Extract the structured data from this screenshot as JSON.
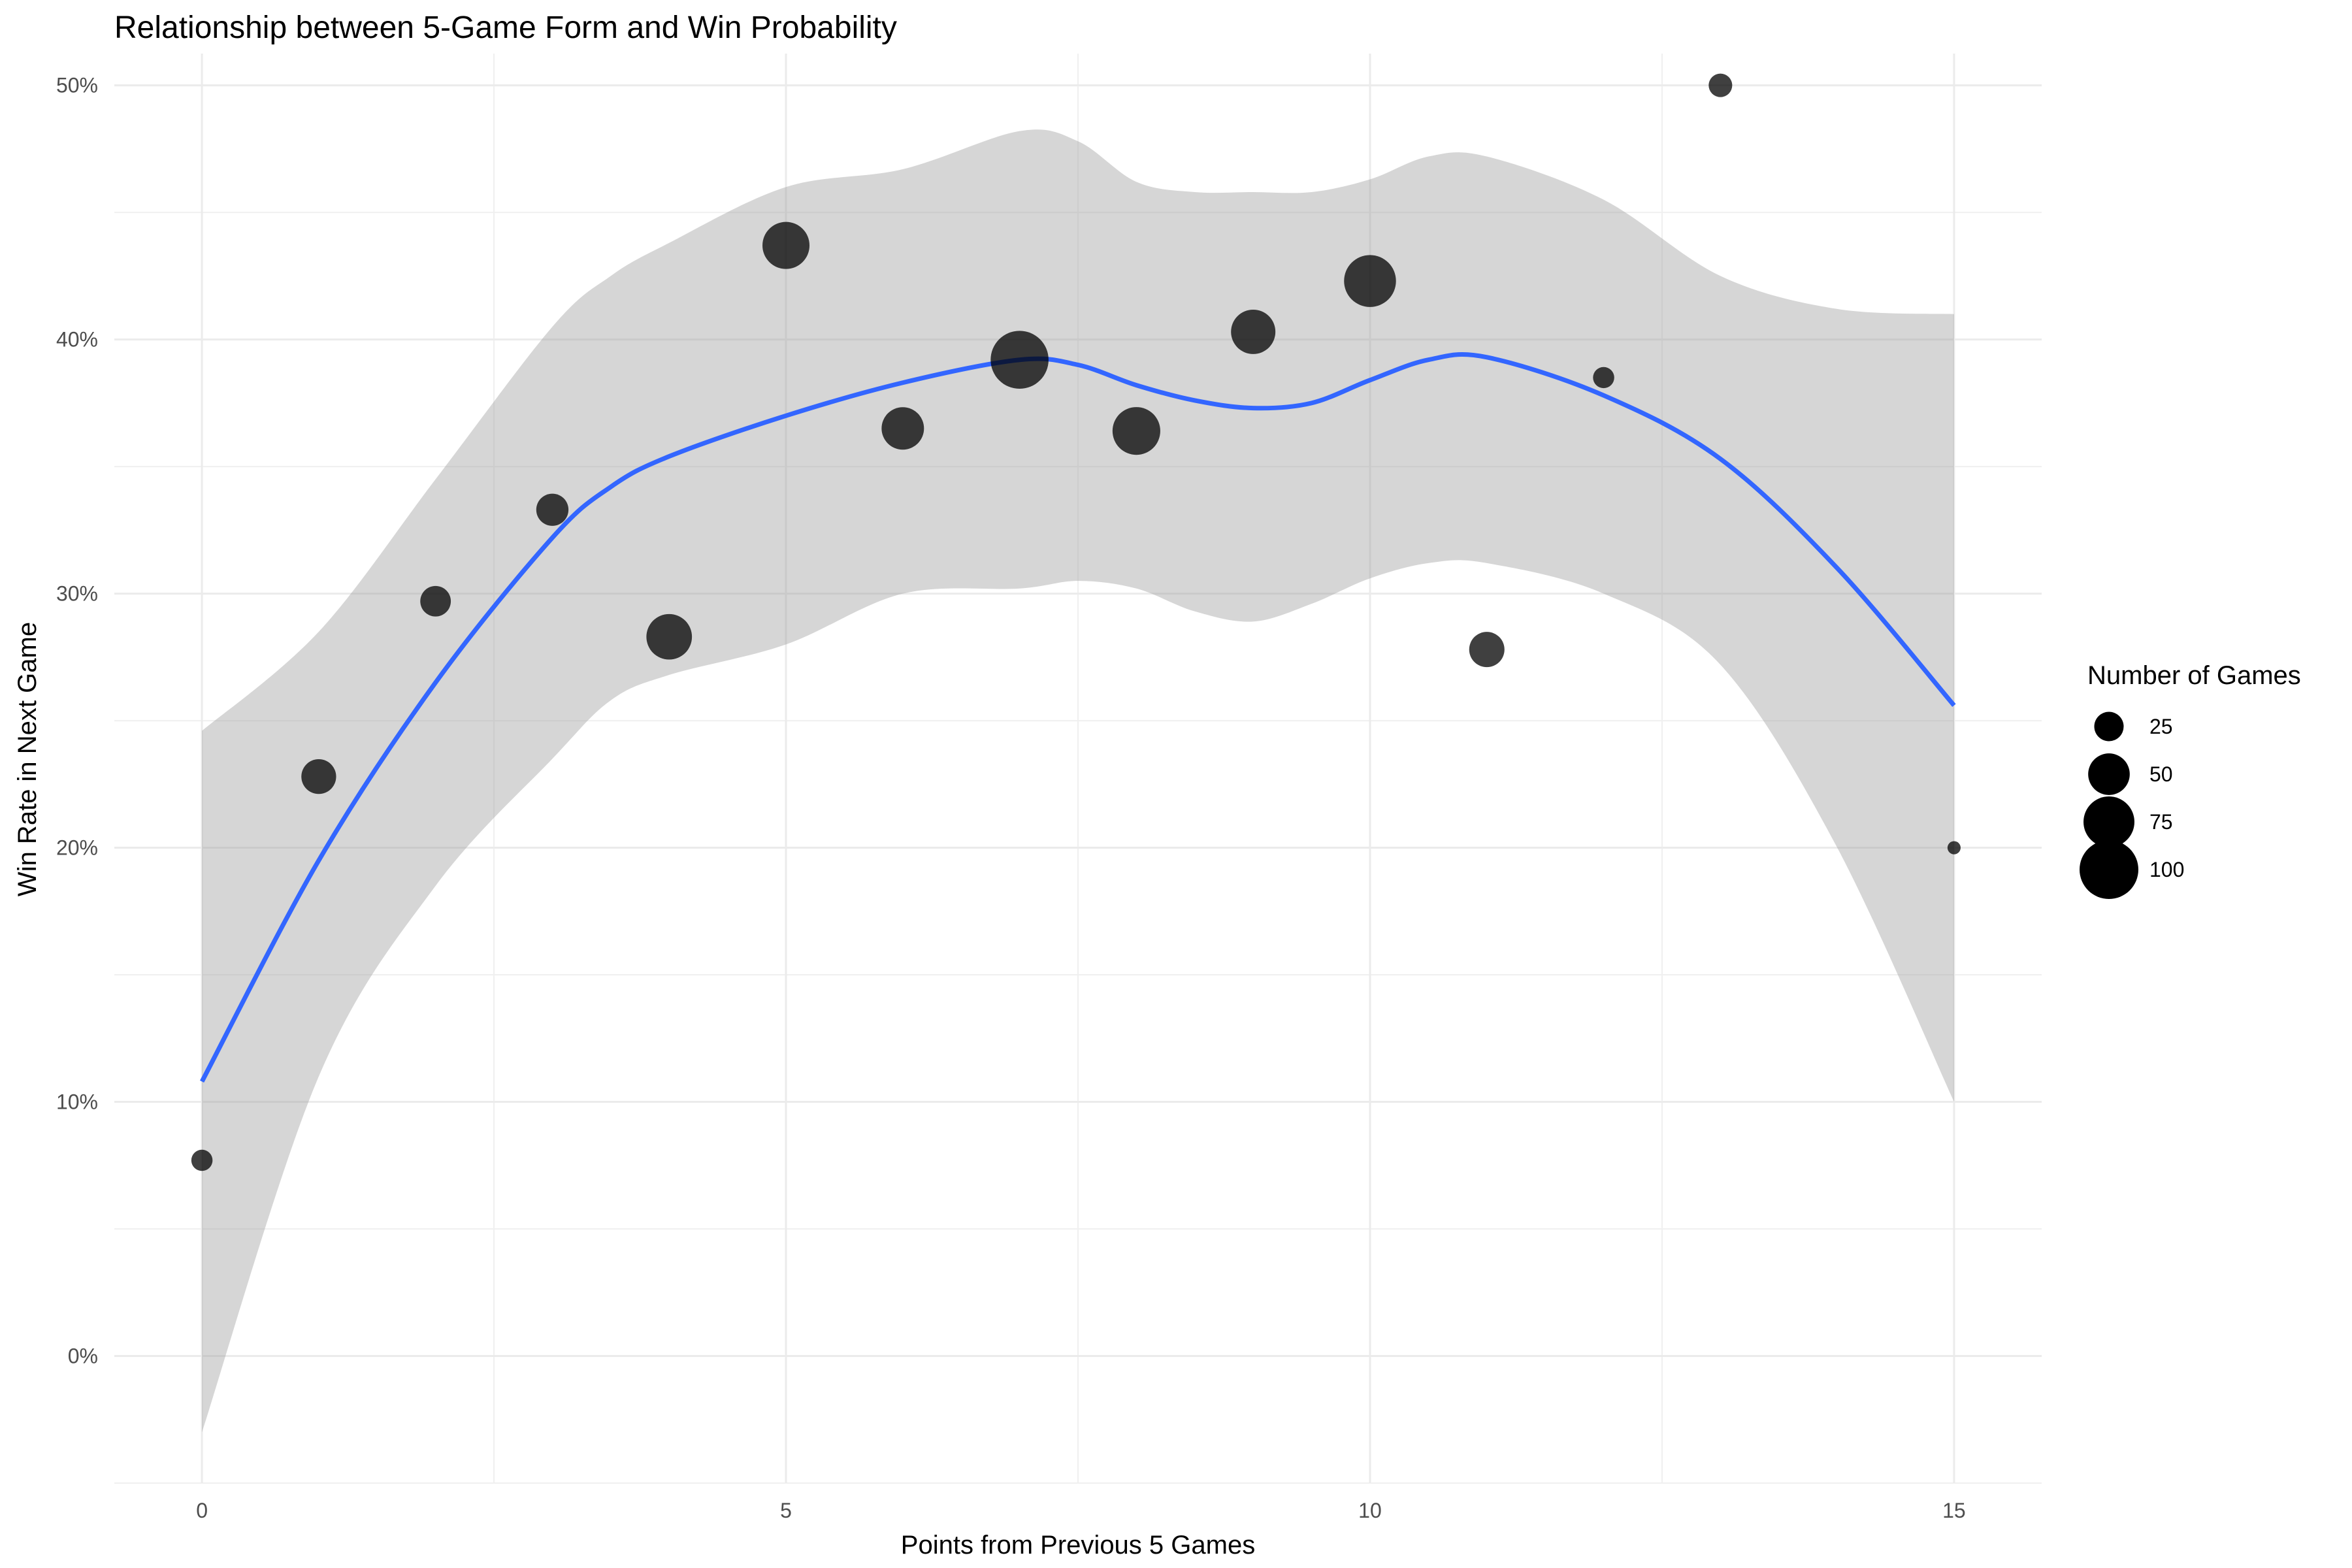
{
  "chart_data": {
    "type": "scatter",
    "title": "Relationship between 5-Game Form and Win Probability",
    "xlabel": "Points from Previous 5 Games",
    "ylabel": "Win Rate in Next Game",
    "xlim": [
      -0.75,
      15.75
    ],
    "ylim": [
      -0.05,
      0.5125
    ],
    "x_ticks": [
      0,
      5,
      10,
      15
    ],
    "x_tick_labels": [
      "0",
      "5",
      "10",
      "15"
    ],
    "y_ticks": [
      0,
      0.1,
      0.2,
      0.3,
      0.4,
      0.5
    ],
    "y_tick_labels": [
      "0%",
      "10%",
      "20%",
      "30%",
      "40%",
      "50%"
    ],
    "grid": true,
    "points": [
      {
        "x": 0,
        "y": 0.077,
        "n": 13
      },
      {
        "x": 1,
        "y": 0.228,
        "n": 35
      },
      {
        "x": 2,
        "y": 0.297,
        "n": 27
      },
      {
        "x": 3,
        "y": 0.333,
        "n": 30
      },
      {
        "x": 4,
        "y": 0.283,
        "n": 60
      },
      {
        "x": 5,
        "y": 0.437,
        "n": 64
      },
      {
        "x": 6,
        "y": 0.365,
        "n": 52
      },
      {
        "x": 7,
        "y": 0.392,
        "n": 97
      },
      {
        "x": 8,
        "y": 0.364,
        "n": 66
      },
      {
        "x": 9,
        "y": 0.403,
        "n": 57
      },
      {
        "x": 10,
        "y": 0.423,
        "n": 78
      },
      {
        "x": 11,
        "y": 0.278,
        "n": 36
      },
      {
        "x": 12,
        "y": 0.385,
        "n": 13
      },
      {
        "x": 13,
        "y": 0.5,
        "n": 16
      },
      {
        "x": 15,
        "y": 0.2,
        "n": 5
      }
    ],
    "smooth": {
      "x": [
        0,
        1,
        2,
        3,
        3.5,
        4,
        5,
        6,
        7,
        7.5,
        8,
        8.5,
        9,
        9.5,
        10,
        10.5,
        11,
        12,
        13,
        14,
        15
      ],
      "y": [
        0.108,
        0.195,
        0.265,
        0.322,
        0.342,
        0.354,
        0.37,
        0.383,
        0.392,
        0.39,
        0.382,
        0.376,
        0.373,
        0.375,
        0.384,
        0.392,
        0.393,
        0.378,
        0.353,
        0.31,
        0.256
      ],
      "lower": [
        -0.03,
        0.11,
        0.185,
        0.235,
        0.258,
        0.268,
        0.28,
        0.3,
        0.302,
        0.305,
        0.302,
        0.293,
        0.289,
        0.296,
        0.306,
        0.312,
        0.312,
        0.3,
        0.272,
        0.2,
        0.1
      ],
      "upper": [
        0.246,
        0.285,
        0.345,
        0.405,
        0.425,
        0.438,
        0.46,
        0.467,
        0.482,
        0.478,
        0.462,
        0.458,
        0.458,
        0.458,
        0.463,
        0.472,
        0.472,
        0.455,
        0.425,
        0.412,
        0.41
      ],
      "color": "#3366FF",
      "band_color": "#999999"
    },
    "point_color": "#000000",
    "legend": {
      "title": "Number of Games",
      "placement": "right",
      "entries": [
        {
          "label": "25",
          "n": 25
        },
        {
          "label": "50",
          "n": 50
        },
        {
          "label": "75",
          "n": 75
        },
        {
          "label": "100",
          "n": 100
        }
      ]
    }
  }
}
